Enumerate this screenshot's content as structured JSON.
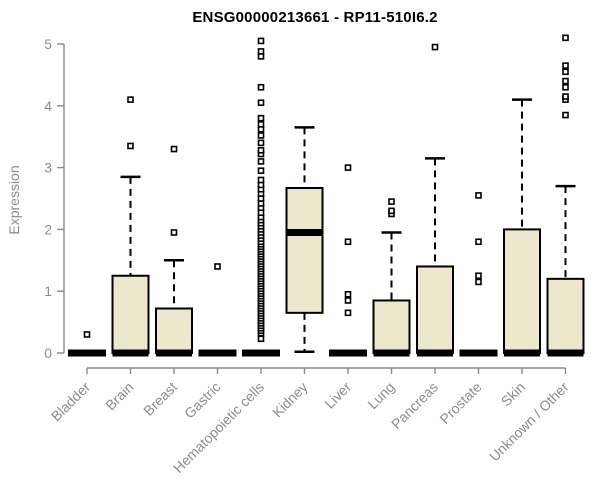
{
  "chart_data": {
    "type": "boxplot",
    "title": "ENSG00000213661 - RP11-510I6.2",
    "xlabel": "",
    "ylabel": "Expression",
    "ylim": [
      0,
      5
    ],
    "yticks": [
      0,
      1,
      2,
      3,
      4,
      5
    ],
    "grid": false,
    "legend": "none",
    "colors": {
      "box_fill": "#EDE8CD",
      "box_stroke": "#000000",
      "axis_line": "#8A8A8A",
      "axis_text": "#8C8C8C",
      "title_text": "#000000",
      "background": "#FFFFFF"
    },
    "categories": [
      "Bladder",
      "Brain",
      "Breast",
      "Gastric",
      "Hematopoietic cells",
      "Kidney",
      "Liver",
      "Lung",
      "Pancreas",
      "Prostate",
      "Skin",
      "Unknown / Other"
    ],
    "boxes": [
      {
        "category": "Bladder",
        "low": 0,
        "q1": 0,
        "median": 0,
        "q3": 0,
        "high": 0,
        "outliers": [
          0.3
        ]
      },
      {
        "category": "Brain",
        "low": 0,
        "q1": 0,
        "median": 0,
        "q3": 1.25,
        "high": 2.85,
        "outliers": [
          3.35,
          4.1
        ]
      },
      {
        "category": "Breast",
        "low": 0,
        "q1": 0,
        "median": 0,
        "q3": 0.72,
        "high": 1.5,
        "outliers": [
          1.95,
          3.3
        ]
      },
      {
        "category": "Gastric",
        "low": 0,
        "q1": 0,
        "median": 0,
        "q3": 0,
        "high": 0,
        "outliers": [
          1.4
        ]
      },
      {
        "category": "Hematopoietic cells",
        "low": 0,
        "q1": 0,
        "median": 0,
        "q3": 0,
        "high": 0,
        "outliers": [
          0.23,
          0.32,
          0.36,
          0.4,
          0.44,
          0.48,
          0.52,
          0.56,
          0.6,
          0.64,
          0.68,
          0.72,
          0.76,
          0.8,
          0.84,
          0.88,
          0.92,
          0.96,
          1.0,
          1.04,
          1.08,
          1.12,
          1.16,
          1.2,
          1.24,
          1.28,
          1.32,
          1.36,
          1.4,
          1.44,
          1.48,
          1.52,
          1.56,
          1.6,
          1.64,
          1.68,
          1.72,
          1.76,
          1.8,
          1.85,
          1.9,
          1.95,
          2.0,
          2.05,
          2.1,
          2.15,
          2.2,
          2.27,
          2.35,
          2.42,
          2.5,
          2.58,
          2.65,
          2.72,
          2.8,
          2.95,
          3.1,
          3.22,
          3.28,
          3.4,
          3.52,
          3.62,
          3.7,
          3.8,
          4.05,
          4.3,
          4.8,
          4.88,
          5.05
        ]
      },
      {
        "category": "Kidney",
        "low": 0.02,
        "q1": 0.65,
        "median": 1.95,
        "q3": 2.67,
        "high": 3.65,
        "outliers": []
      },
      {
        "category": "Liver",
        "low": 0,
        "q1": 0,
        "median": 0,
        "q3": 0,
        "high": 0,
        "outliers": [
          0.65,
          0.85,
          0.95,
          1.8,
          3.0
        ]
      },
      {
        "category": "Lung",
        "low": 0,
        "q1": 0,
        "median": 0,
        "q3": 0.85,
        "high": 1.95,
        "outliers": [
          2.25,
          2.3,
          2.45
        ]
      },
      {
        "category": "Pancreas",
        "low": 0,
        "q1": 0,
        "median": 0,
        "q3": 1.4,
        "high": 3.15,
        "outliers": [
          4.95
        ]
      },
      {
        "category": "Prostate",
        "low": 0,
        "q1": 0,
        "median": 0,
        "q3": 0,
        "high": 0,
        "outliers": [
          1.15,
          1.25,
          1.8,
          2.55
        ]
      },
      {
        "category": "Skin",
        "low": 0,
        "q1": 0,
        "median": 0,
        "q3": 2.0,
        "high": 4.1,
        "outliers": []
      },
      {
        "category": "Unknown / Other",
        "low": 0,
        "q1": 0,
        "median": 0,
        "q3": 1.2,
        "high": 2.7,
        "outliers": [
          3.85,
          4.1,
          4.15,
          4.3,
          4.4,
          4.55,
          4.65,
          5.1
        ]
      }
    ]
  }
}
